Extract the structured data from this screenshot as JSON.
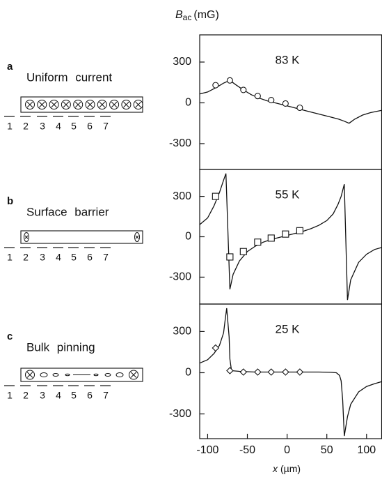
{
  "chart_data": [
    {
      "type": "line",
      "label": "83 K",
      "ylabel": {
        "symbol": "B",
        "subscript": "ac",
        "unit": "(mG)"
      },
      "xlim": [
        -110,
        119
      ],
      "ylim": [
        -490,
        500
      ],
      "yticks": [
        -300,
        0,
        300
      ],
      "curve": {
        "x": [
          -110,
          -100,
          -90,
          -80,
          -72,
          -65,
          -55,
          -45,
          -35,
          -25,
          -15,
          -5,
          5,
          15,
          25,
          35,
          45,
          55,
          65,
          72,
          78,
          85,
          95,
          105,
          119
        ],
        "values": [
          65,
          80,
          110,
          145,
          165,
          135,
          95,
          60,
          35,
          15,
          0,
          -15,
          -30,
          -45,
          -60,
          -75,
          -90,
          -105,
          -120,
          -135,
          -150,
          -120,
          -90,
          -72,
          -55
        ]
      },
      "markers": {
        "shape": "circle",
        "x": [
          -90,
          -72,
          -55,
          -37,
          -20,
          -2,
          16
        ],
        "values": [
          130,
          165,
          95,
          50,
          20,
          -5,
          -36
        ]
      }
    },
    {
      "type": "line",
      "label": "55 K",
      "xlim": [
        -110,
        119
      ],
      "ylim": [
        -500,
        500
      ],
      "yticks": [
        -300,
        0,
        300
      ],
      "curve": {
        "x": [
          -110,
          -100,
          -92,
          -85,
          -80,
          -77,
          -72,
          -68,
          -60,
          -50,
          -40,
          -30,
          -20,
          -10,
          0,
          10,
          20,
          30,
          40,
          50,
          58,
          64,
          68,
          72,
          76,
          80,
          90,
          100,
          110,
          119
        ],
        "values": [
          90,
          140,
          230,
          330,
          420,
          470,
          -390,
          -280,
          -180,
          -110,
          -70,
          -40,
          -20,
          -5,
          10,
          25,
          40,
          60,
          85,
          120,
          170,
          240,
          300,
          390,
          -470,
          -320,
          -190,
          -130,
          -95,
          -80
        ]
      },
      "markers": {
        "shape": "square",
        "x": [
          -90,
          -72,
          -55,
          -37,
          -20,
          -2,
          16
        ],
        "values": [
          300,
          -150,
          -110,
          -40,
          -10,
          20,
          45
        ]
      }
    },
    {
      "type": "line",
      "label": "25 K",
      "xlabel": {
        "symbol": "x",
        "unit": "(µm)"
      },
      "xlim": [
        -110,
        119
      ],
      "ylim": [
        -480,
        500
      ],
      "yticks": [
        -300,
        0,
        300
      ],
      "xticks": [
        -100,
        -50,
        0,
        50,
        100
      ],
      "curve": {
        "x": [
          -110,
          -100,
          -92,
          -85,
          -80,
          -78,
          -76,
          -73,
          -72,
          -70,
          -60,
          -40,
          -20,
          0,
          20,
          40,
          55,
          62,
          66,
          68,
          70,
          72,
          76,
          80,
          90,
          100,
          110,
          119
        ],
        "values": [
          70,
          95,
          140,
          200,
          290,
          380,
          470,
          260,
          100,
          15,
          10,
          5,
          5,
          5,
          5,
          5,
          3,
          0,
          -20,
          -60,
          -200,
          -460,
          -320,
          -230,
          -140,
          -100,
          -80,
          -65
        ]
      },
      "markers": {
        "shape": "diamond",
        "x": [
          -90,
          -72,
          -55,
          -37,
          -20,
          -2,
          16
        ],
        "values": [
          180,
          15,
          5,
          5,
          5,
          5,
          5
        ]
      }
    }
  ],
  "schematics": [
    {
      "letter": "a",
      "title": "Uniform current",
      "positions": [
        1,
        2,
        3,
        4,
        5,
        6,
        7
      ]
    },
    {
      "letter": "b",
      "title": "Surface barrier",
      "positions": [
        1,
        2,
        3,
        4,
        5,
        6,
        7
      ]
    },
    {
      "letter": "c",
      "title": "Bulk pinning",
      "positions": [
        1,
        2,
        3,
        4,
        5,
        6,
        7
      ]
    }
  ]
}
